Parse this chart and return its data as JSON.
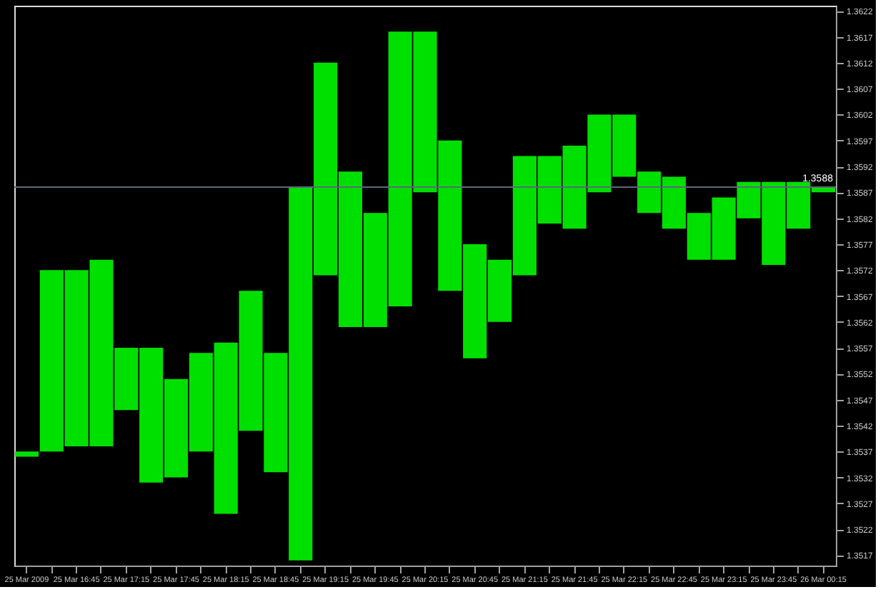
{
  "chart_data": {
    "type": "bar",
    "categories": [
      "25 Mar 2009",
      null,
      "25 Mar 16:45",
      null,
      "25 Mar 17:15",
      null,
      "25 Mar 17:45",
      null,
      "25 Mar 18:15",
      null,
      "25 Mar 18:45",
      null,
      "25 Mar 19:15",
      null,
      "25 Mar 19:45",
      null,
      "25 Mar 20:15",
      null,
      "25 Mar 20:45",
      null,
      "25 Mar 21:15",
      null,
      "25 Mar 21:45",
      null,
      "25 Mar 22:15",
      null,
      "25 Mar 22:45",
      null,
      "25 Mar 23:15",
      null,
      "25 Mar 23:45",
      null,
      "26 Mar 00:15"
    ],
    "base": [
      1.3536,
      1.3537,
      1.3538,
      1.3538,
      1.3545,
      1.3531,
      1.3532,
      1.3537,
      1.3525,
      1.3541,
      1.3533,
      1.3516,
      1.3571,
      1.3561,
      1.3561,
      1.3565,
      1.3587,
      1.3568,
      1.3555,
      1.3562,
      1.3571,
      1.3581,
      1.358,
      1.3587,
      1.359,
      1.3583,
      1.358,
      1.3574,
      1.3574,
      1.3582,
      1.3573,
      1.358,
      1.3587
    ],
    "values": [
      0.0001,
      0.0035,
      0.0034,
      0.0036,
      0.0012,
      0.0026,
      0.0019,
      0.0019,
      0.0033,
      0.0027,
      0.0023,
      0.0072,
      0.0041,
      0.003,
      0.0022,
      0.0053,
      0.0031,
      0.0029,
      0.0022,
      0.0012,
      0.0023,
      0.0013,
      0.0016,
      0.0015,
      0.0012,
      0.0008,
      0.001,
      0.0009,
      0.0012,
      0.0007,
      0.0016,
      0.0009,
      0.0001
    ],
    "color": "#00e000",
    "ylim": [
      1.3515,
      1.3623
    ],
    "yticks": [
      1.3517,
      1.3522,
      1.3527,
      1.3532,
      1.3537,
      1.3542,
      1.3547,
      1.3552,
      1.3557,
      1.3562,
      1.3567,
      1.3572,
      1.3577,
      1.3582,
      1.3587,
      1.3592,
      1.3597,
      1.3602,
      1.3607,
      1.3612,
      1.3617,
      1.3622
    ],
    "ref_lines": [
      {
        "axis": "y",
        "value": 1.3588,
        "label": "1.3588",
        "color": "#5a6a78"
      }
    ],
    "grid": false
  }
}
